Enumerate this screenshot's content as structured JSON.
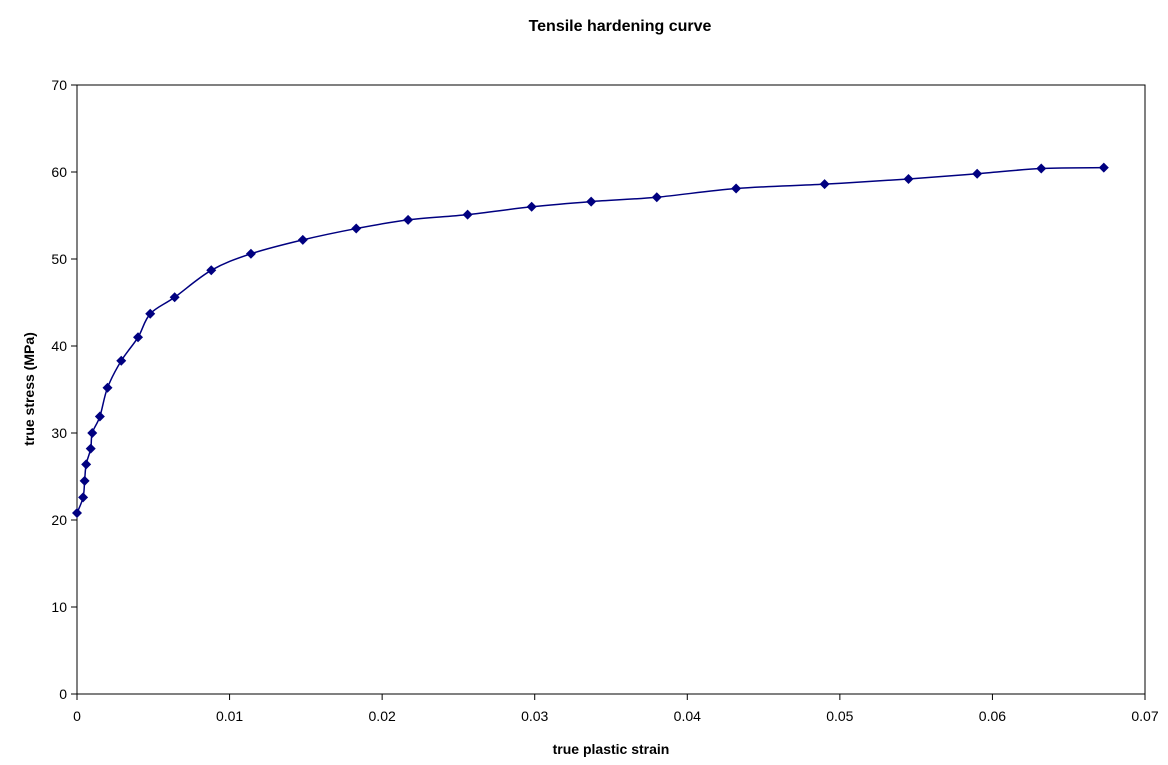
{
  "chart_data": {
    "type": "scatter",
    "title": "Tensile hardening curve",
    "xlabel": "true plastic strain",
    "ylabel": "true stress (MPa)",
    "xlim": [
      0,
      0.07
    ],
    "ylim": [
      0,
      70
    ],
    "x_ticks": [
      "0",
      "0.01",
      "0.02",
      "0.03",
      "0.04",
      "0.05",
      "0.06",
      "0.07"
    ],
    "y_ticks": [
      "0",
      "10",
      "20",
      "30",
      "40",
      "50",
      "60",
      "70"
    ],
    "grid": false,
    "legend": "none",
    "line": "smooth",
    "marker": "diamond",
    "series": [
      {
        "color": "#000080",
        "points": [
          [
            0.0,
            20.8
          ],
          [
            0.0004,
            22.6
          ],
          [
            0.0005,
            24.5
          ],
          [
            0.0006,
            26.4
          ],
          [
            0.0009,
            28.2
          ],
          [
            0.001,
            30.0
          ],
          [
            0.0015,
            31.9
          ],
          [
            0.002,
            35.2
          ],
          [
            0.0029,
            38.3
          ],
          [
            0.004,
            41.0
          ],
          [
            0.0048,
            43.7
          ],
          [
            0.0064,
            45.6
          ],
          [
            0.0088,
            48.7
          ],
          [
            0.0114,
            50.6
          ],
          [
            0.0148,
            52.2
          ],
          [
            0.0183,
            53.5
          ],
          [
            0.0217,
            54.5
          ],
          [
            0.0256,
            55.1
          ],
          [
            0.0298,
            56.0
          ],
          [
            0.0337,
            56.6
          ],
          [
            0.038,
            57.1
          ],
          [
            0.0432,
            58.1
          ],
          [
            0.049,
            58.6
          ],
          [
            0.0545,
            59.2
          ],
          [
            0.059,
            59.8
          ],
          [
            0.0632,
            60.4
          ],
          [
            0.0673,
            60.5
          ]
        ]
      }
    ]
  }
}
